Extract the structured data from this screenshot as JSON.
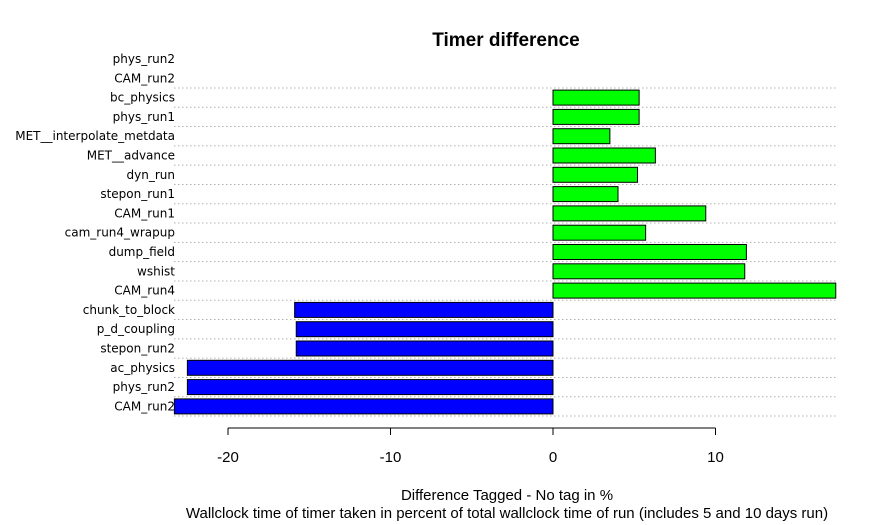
{
  "chart_data": {
    "type": "bar",
    "orientation": "horizontal",
    "title": "Timer difference",
    "xlabel": "Difference Tagged - No tag in %",
    "subtitle": "Wallclock time of timer taken in percent of total wallclock time of run (includes 5 and 10 days run)",
    "categories": [
      "phys_run2",
      "CAM_run2",
      "bc_physics",
      "phys_run1",
      "MET__interpolate_metdata",
      "MET__advance",
      "dyn_run",
      "stepon_run1",
      "CAM_run1",
      "cam_run4_wrapup",
      "dump_field",
      "wshist",
      "CAM_run4",
      "chunk_to_block",
      "p_d_coupling",
      "stepon_run2",
      "ac_physics",
      "phys_run2",
      "CAM_run2"
    ],
    "values": [
      null,
      null,
      5.3,
      5.3,
      3.5,
      6.3,
      5.2,
      4.0,
      9.4,
      5.7,
      11.9,
      11.8,
      17.4,
      -15.9,
      -15.8,
      -15.8,
      -22.5,
      -22.5,
      -23.3
    ],
    "xlim": [
      -23.3,
      17.4
    ],
    "xticks": [
      "-20",
      "-10",
      "0",
      "10"
    ],
    "grid": "horizontal dotted",
    "colors": {
      "positive": "#00ff00",
      "negative": "#0000ff"
    }
  }
}
